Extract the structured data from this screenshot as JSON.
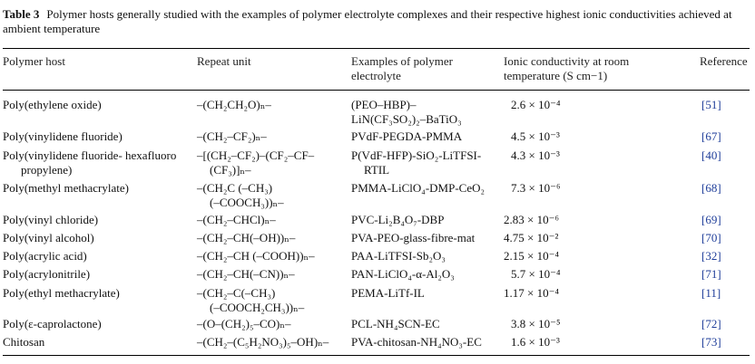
{
  "caption": {
    "label": "Table 3",
    "text": "Polymer hosts generally studied with the examples of polymer electrolyte complexes and their respective highest ionic conductivities achieved at ambient temperature"
  },
  "headers": {
    "host": "Polymer host",
    "repeat": "Repeat unit",
    "example": [
      "Examples of polymer",
      "electrolyte"
    ],
    "conductivity": [
      "Ionic conductivity at room",
      "temperature (S cm−1)"
    ],
    "reference": "Reference"
  },
  "rows": [
    {
      "host": [
        "Poly(ethylene oxide)"
      ],
      "repeat": [
        "–(CH₂CH₂O)ₙ–"
      ],
      "example": [
        "(PEO–HBP)–",
        "LiN(CF₃SO₂)₂–BaTiO₃"
      ],
      "conductivity": "2.6 × 10⁻⁴",
      "reference": "[51]"
    },
    {
      "host": [
        "Poly(vinylidene fluoride)"
      ],
      "repeat": [
        "–(CH₂–CF₂)ₙ–"
      ],
      "example": [
        "PVdF-PEGDA-PMMA"
      ],
      "conductivity": "4.5 × 10⁻³",
      "reference": "[67]"
    },
    {
      "host": [
        "Poly(vinylidene fluoride- hexafluoro",
        "propylene)"
      ],
      "repeat": [
        "–[(CH₂–CF₂)–(CF₂–CF–",
        "(CF₃)]ₙ–"
      ],
      "example": [
        "P(VdF-HFP)-SiO₂-LiTFSI-",
        "RTIL"
      ],
      "conductivity": "4.3 × 10⁻³",
      "reference": "[40]"
    },
    {
      "host": [
        "Poly(methyl methacrylate)"
      ],
      "repeat": [
        "–(CH₂C (–CH₃)",
        "(–COOCH₃))ₙ–"
      ],
      "example": [
        "PMMA-LiClO₄-DMP-CeO₂"
      ],
      "conductivity": "7.3 × 10⁻⁶",
      "reference": "[68]"
    },
    {
      "host": [
        "Poly(vinyl chloride)"
      ],
      "repeat": [
        "–(CH₂–CHCl)ₙ–"
      ],
      "example": [
        "PVC-Li₂B₄O₇-DBP"
      ],
      "conductivity": "2.83 × 10⁻⁶",
      "reference": "[69]"
    },
    {
      "host": [
        "Poly(vinyl alcohol)"
      ],
      "repeat": [
        "–(CH₂–CH(–OH))ₙ–"
      ],
      "example": [
        "PVA-PEO-glass-fibre-mat"
      ],
      "conductivity": "4.75 × 10⁻²",
      "reference": "[70]"
    },
    {
      "host": [
        "Poly(acrylic acid)"
      ],
      "repeat": [
        "–(CH₂–CH (–COOH))ₙ–"
      ],
      "example": [
        "PAA-LiTFSI-Sb₂O₃"
      ],
      "conductivity": "2.15 × 10⁻⁴",
      "reference": "[32]"
    },
    {
      "host": [
        "Poly(acrylonitrile)"
      ],
      "repeat": [
        "–(CH₂–CH(–CN))ₙ–"
      ],
      "example": [
        "PAN-LiClO₄-α-Al₂O₃"
      ],
      "conductivity": "5.7 × 10⁻⁴",
      "reference": "[71]"
    },
    {
      "host": [
        "Poly(ethyl methacrylate)"
      ],
      "repeat": [
        "–(CH₂–C(–CH₃)",
        "(–COOCH₂CH₃))ₙ–"
      ],
      "example": [
        "PEMA-LiTf-IL"
      ],
      "conductivity": "1.17 × 10⁻⁴",
      "reference": "[11]"
    },
    {
      "host": [
        "Poly(ε-caprolactone)"
      ],
      "repeat": [
        "–(O–(CH₂)₅–CO)ₙ–"
      ],
      "example": [
        "PCL-NH₄SCN-EC"
      ],
      "conductivity": "3.8 × 10⁻⁵",
      "reference": "[72]"
    },
    {
      "host": [
        "Chitosan"
      ],
      "repeat": [
        "–(CH₂–(C₅H₂NO₃)₅–OH)ₙ–"
      ],
      "example": [
        "PVA-chitosan-NH₄NO₃-EC"
      ],
      "conductivity": "1.6 × 10⁻³",
      "reference": "[73]"
    }
  ]
}
